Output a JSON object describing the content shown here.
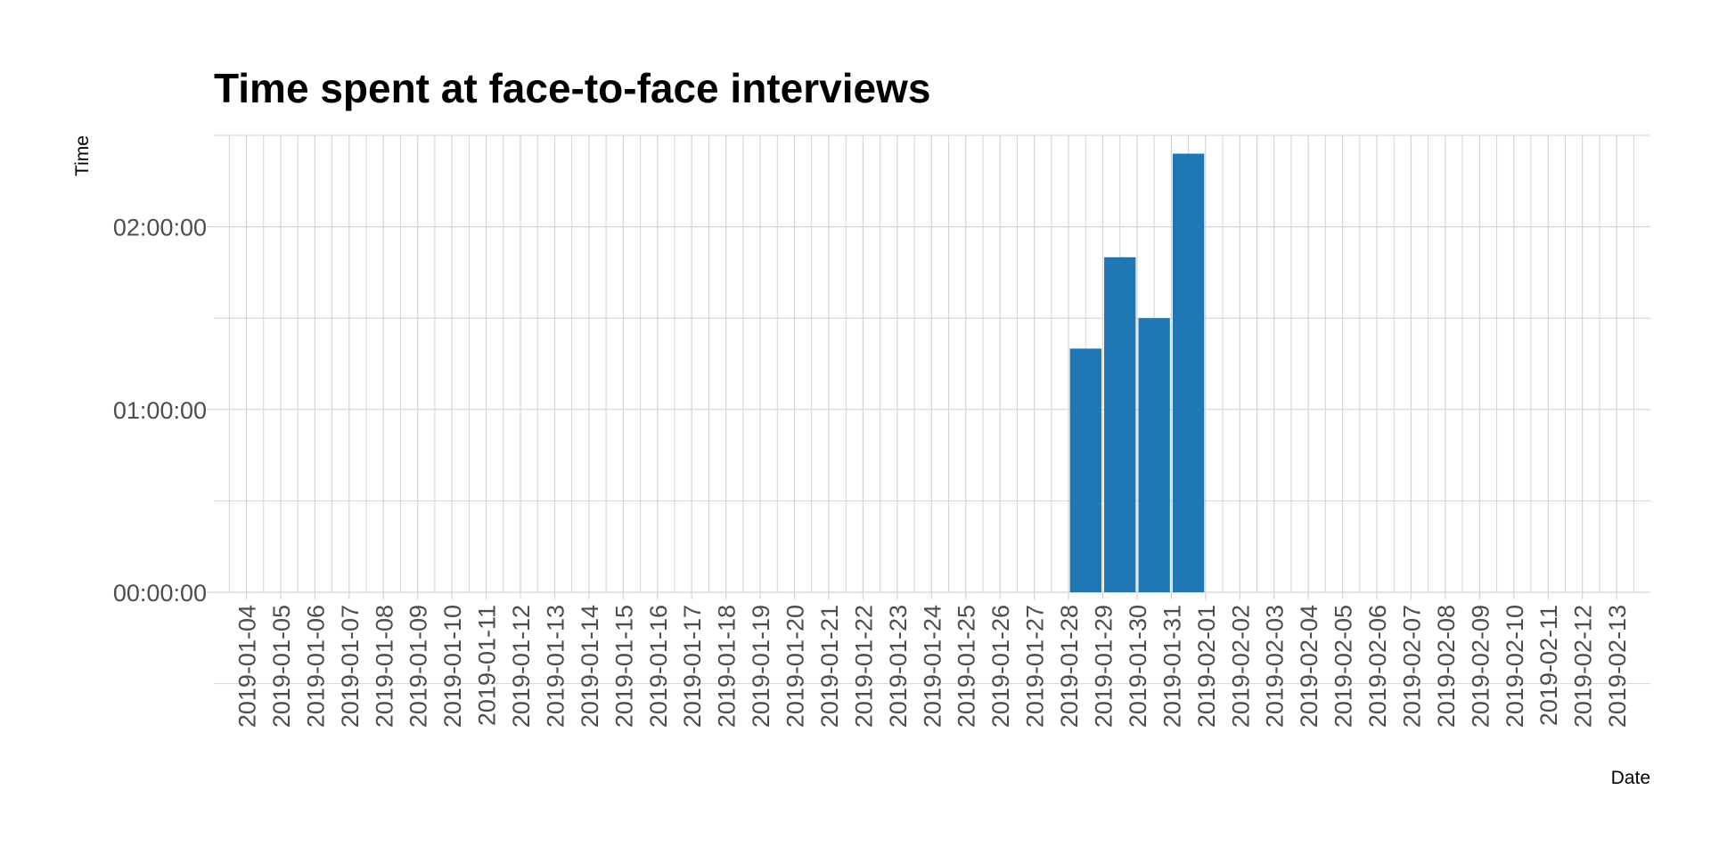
{
  "chart_data": {
    "type": "bar",
    "title": "Time spent at face-to-face interviews",
    "xlabel": "Date",
    "ylabel": "Time",
    "categories": [
      "2019-01-04",
      "2019-01-05",
      "2019-01-06",
      "2019-01-07",
      "2019-01-08",
      "2019-01-09",
      "2019-01-10",
      "2019-01-11",
      "2019-01-12",
      "2019-01-13",
      "2019-01-14",
      "2019-01-15",
      "2019-01-16",
      "2019-01-17",
      "2019-01-18",
      "2019-01-19",
      "2019-01-20",
      "2019-01-21",
      "2019-01-22",
      "2019-01-23",
      "2019-01-24",
      "2019-01-25",
      "2019-01-26",
      "2019-01-27",
      "2019-01-28",
      "2019-01-29",
      "2019-01-30",
      "2019-01-31",
      "2019-02-01",
      "2019-02-02",
      "2019-02-03",
      "2019-02-04",
      "2019-02-05",
      "2019-02-06",
      "2019-02-07",
      "2019-02-08",
      "2019-02-09",
      "2019-02-10",
      "2019-02-11",
      "2019-02-12",
      "2019-02-13"
    ],
    "bars": [
      {
        "x": "2019-01-28",
        "y": "01:20:00"
      },
      {
        "x": "2019-01-29",
        "y": "01:50:00"
      },
      {
        "x": "2019-01-30",
        "y": "01:30:00"
      },
      {
        "x": "2019-01-31",
        "y": "02:24:00"
      }
    ],
    "x_range": [
      "2019-01-04",
      "2019-02-13"
    ],
    "ylim": [
      "00:00:00",
      "02:30:00"
    ],
    "yticks": [
      "00:00:00",
      "01:00:00",
      "02:00:00"
    ],
    "bar_color": "#1f77b4",
    "grid": true,
    "legend": "none"
  }
}
